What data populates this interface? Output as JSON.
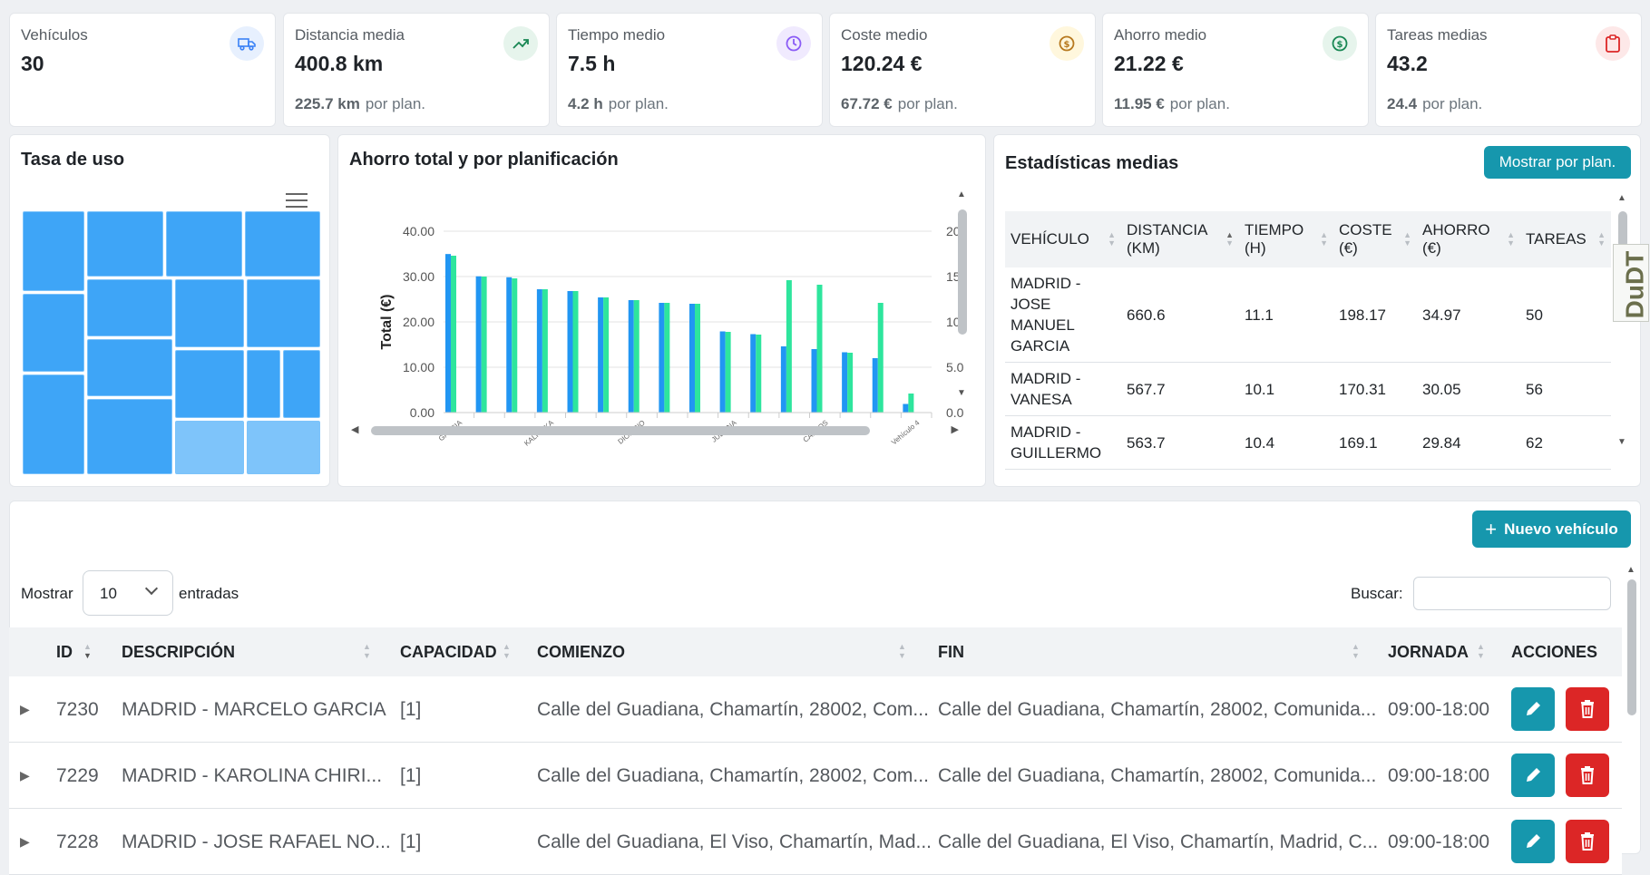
{
  "kpis": [
    {
      "title": "Vehículos",
      "value": "30",
      "icon": "truck-icon",
      "color": "#3b82f6",
      "bg": "#e7f0fe"
    },
    {
      "title": "Distancia media",
      "value": "400.8 km",
      "sub_value": "225.7 km",
      "sub_label": "por plan.",
      "icon": "trending-up-icon",
      "color": "#198754",
      "bg": "#e6f4ec"
    },
    {
      "title": "Tiempo medio",
      "value": "7.5 h",
      "sub_value": "4.2 h",
      "sub_label": "por plan.",
      "icon": "clock-icon",
      "color": "#8b5cf6",
      "bg": "#f0eafe"
    },
    {
      "title": "Coste medio",
      "value": "120.24 €",
      "sub_value": "67.72 €",
      "sub_label": "por plan.",
      "icon": "coin-icon",
      "color": "#b7791f",
      "bg": "#fff7dd"
    },
    {
      "title": "Ahorro medio",
      "value": "21.22 €",
      "sub_value": "11.95 €",
      "sub_label": "por plan.",
      "icon": "dollar-icon",
      "color": "#198754",
      "bg": "#e6f4ec"
    },
    {
      "title": "Tareas medias",
      "value": "43.2",
      "sub_value": "24.4",
      "sub_label": "por plan.",
      "icon": "clipboard-icon",
      "color": "#dc2626",
      "bg": "#fde8e8"
    }
  ],
  "usage": {
    "title": "Tasa de uso"
  },
  "savings_chart": {
    "title": "Ahorro total y por planificación"
  },
  "chart_data": {
    "type": "bar",
    "title": "Ahorro total y por planificación",
    "ylabel": "Total (€)",
    "ylim": [
      0,
      40
    ],
    "yticks": [
      "0.00",
      "10.00",
      "20.00",
      "30.00",
      "40.00"
    ],
    "y2lim": [
      0,
      20
    ],
    "y2ticks": [
      "0.0",
      "5.0",
      "10",
      "15",
      "20"
    ],
    "xticks": [
      "GARCIA",
      "KALIUSKA",
      "DIONISIO",
      "JULIANA",
      "CARLOS",
      "Vehículo 4"
    ],
    "series": [
      {
        "values": [
          34.97,
          30.05,
          29.84,
          27.2,
          26.8,
          25.4,
          24.8,
          24.2,
          24.0,
          17.9,
          17.3,
          14.6,
          14.0,
          13.3,
          12.0,
          1.9
        ]
      },
      {
        "values": [
          17.3,
          15.0,
          14.8,
          13.6,
          13.4,
          12.7,
          12.4,
          12.1,
          12.0,
          8.9,
          8.6,
          14.6,
          14.1,
          6.6,
          12.1,
          2.1
        ]
      }
    ]
  },
  "stats": {
    "title": "Estadísticas medias",
    "button": "Mostrar por plan.",
    "columns": [
      "VEHÍCULO",
      "DISTANCIA (KM)",
      "TIEMPO (H)",
      "COSTE (€)",
      "AHORRO (€)",
      "TAREAS"
    ],
    "rows": [
      [
        "MADRID - JOSE MANUEL GARCIA",
        "660.6",
        "11.1",
        "198.17",
        "34.97",
        "50"
      ],
      [
        "MADRID - VANESA",
        "567.7",
        "10.1",
        "170.31",
        "30.05",
        "56"
      ],
      [
        "MADRID - GUILLERMO",
        "563.7",
        "10.4",
        "169.1",
        "29.84",
        "62"
      ]
    ]
  },
  "list": {
    "new_button": "Nuevo vehículo",
    "show_label": "Mostrar",
    "entries_value": "10",
    "entries_label": "entradas",
    "search_label": "Buscar:",
    "search_value": "",
    "columns": [
      "ID",
      "DESCRIPCIÓN",
      "CAPACIDAD",
      "COMIENZO",
      "FIN",
      "JORNADA",
      "ACCIONES"
    ],
    "rows": [
      [
        "7230",
        "MADRID - MARCELO GARCIA",
        "[1]",
        "Calle del Guadiana, Chamartín, 28002, Com...",
        "Calle del Guadiana, Chamartín, 28002, Comunida...",
        "09:00-18:00"
      ],
      [
        "7229",
        "MADRID - KAROLINA CHIRI...",
        "[1]",
        "Calle del Guadiana, Chamartín, 28002, Com...",
        "Calle del Guadiana, Chamartín, 28002, Comunida...",
        "09:00-18:00"
      ],
      [
        "7228",
        "MADRID - JOSE RAFAEL NO...",
        "[1]",
        "Calle del Guadiana, El Viso, Chamartín, Mad...",
        "Calle del Guadiana, El Viso, Chamartín, Madrid, C...",
        "09:00-18:00"
      ]
    ]
  },
  "badge": "DuDT"
}
